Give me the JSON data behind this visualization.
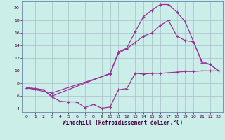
{
  "xlabel": "Windchill (Refroidissement éolien,°C)",
  "background_color": "#cceee8",
  "grid_color": "#aabbcc",
  "line_color": "#993399",
  "xlim": [
    -0.5,
    23.5
  ],
  "ylim": [
    3.5,
    21.0
  ],
  "yticks": [
    4,
    6,
    8,
    10,
    12,
    14,
    16,
    18,
    20
  ],
  "xticks": [
    0,
    1,
    2,
    3,
    4,
    5,
    6,
    7,
    8,
    9,
    10,
    11,
    12,
    13,
    14,
    15,
    16,
    17,
    18,
    19,
    20,
    21,
    22,
    23
  ],
  "series1_x": [
    0,
    1,
    2,
    3,
    4,
    5,
    6,
    7,
    8,
    9,
    10,
    11,
    12,
    13,
    14,
    15,
    16,
    17,
    18,
    19,
    20,
    21,
    22,
    23
  ],
  "series1_y": [
    7.3,
    7.2,
    7.0,
    5.9,
    5.2,
    5.1,
    5.1,
    4.2,
    4.7,
    4.1,
    4.3,
    7.0,
    7.2,
    9.6,
    9.5,
    9.6,
    9.6,
    9.7,
    9.8,
    9.9,
    9.9,
    10.0,
    10.0,
    10.0
  ],
  "series2_x": [
    0,
    1,
    2,
    3,
    10,
    11,
    12,
    13,
    14,
    15,
    16,
    17,
    18,
    19,
    20,
    21,
    22,
    23
  ],
  "series2_y": [
    7.3,
    7.2,
    7.0,
    6.0,
    9.6,
    13.0,
    13.6,
    16.2,
    18.6,
    19.6,
    20.5,
    20.5,
    19.3,
    17.8,
    14.6,
    11.3,
    11.0,
    10.0
  ],
  "series3_x": [
    0,
    3,
    10,
    11,
    12,
    13,
    14,
    15,
    16,
    17,
    18,
    19,
    20,
    21,
    22,
    23
  ],
  "series3_y": [
    7.3,
    6.5,
    9.5,
    12.8,
    13.5,
    14.5,
    15.5,
    16.0,
    17.2,
    18.0,
    15.5,
    14.8,
    14.6,
    11.5,
    11.0,
    10.0
  ]
}
